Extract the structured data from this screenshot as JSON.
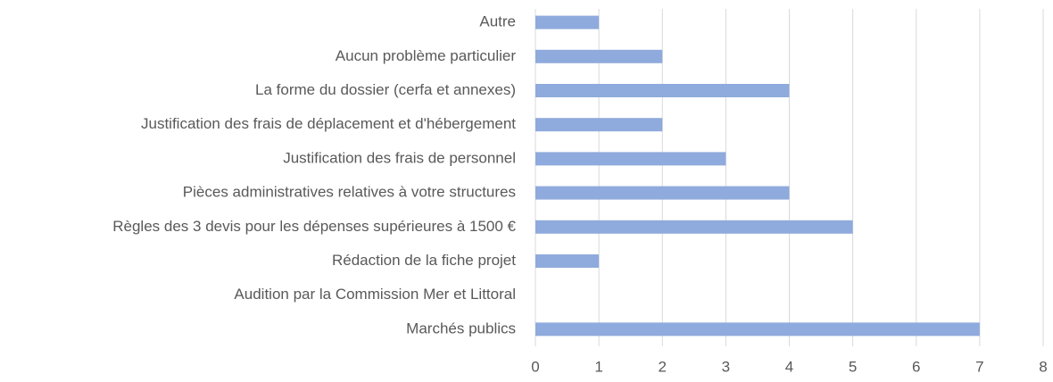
{
  "chart_data": {
    "type": "bar",
    "orientation": "horizontal",
    "categories": [
      "Autre",
      "Aucun problème particulier",
      "La forme du dossier (cerfa et annexes)",
      "Justification des frais de déplacement et d'hébergement",
      "Justification des frais de personnel",
      "Pièces administratives relatives à votre structures",
      "Règles des 3 devis pour les dépenses supérieures à 1500 €",
      "Rédaction de la fiche projet",
      "Audition par la Commission Mer et Littoral",
      "Marchés publics"
    ],
    "values": [
      1,
      2,
      4,
      2,
      3,
      4,
      5,
      1,
      0,
      7
    ],
    "color": "#8faadc",
    "xlim": [
      0,
      8
    ],
    "xticks": [
      0,
      1,
      2,
      3,
      4,
      5,
      6,
      7,
      8
    ],
    "grid": true
  }
}
